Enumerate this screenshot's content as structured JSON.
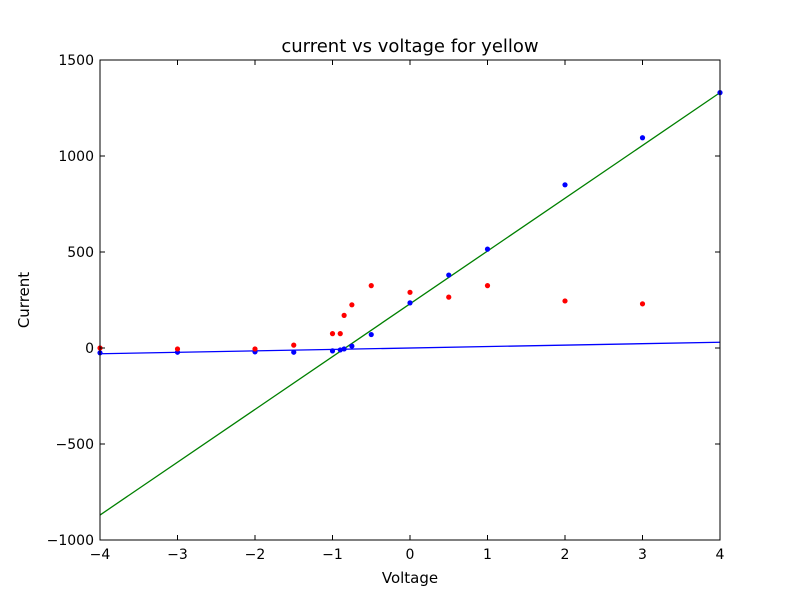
{
  "chart_data": {
    "type": "scatter",
    "title": "current vs voltage for yellow",
    "xlabel": "Voltage",
    "ylabel": "Current",
    "xlim": [
      -4,
      4
    ],
    "ylim": [
      -1000,
      1500
    ],
    "xticks": [
      -4,
      -3,
      -2,
      -1,
      0,
      1,
      2,
      3,
      4
    ],
    "xtick_labels": [
      "−4",
      "−3",
      "−2",
      "−1",
      "0",
      "1",
      "2",
      "3",
      "4"
    ],
    "yticks": [
      -1000,
      -500,
      0,
      500,
      1000,
      1500
    ],
    "ytick_labels": [
      "−1000",
      "−500",
      "0",
      "500",
      "1000",
      "1500"
    ],
    "grid": false,
    "legend": "none",
    "series": [
      {
        "kind": "points",
        "color": "#0000ff",
        "x": [
          -4,
          -3,
          -2,
          -1.5,
          -1,
          -0.9,
          -0.85,
          -0.75,
          -0.5,
          0,
          0.5,
          1,
          2,
          3,
          4
        ],
        "y": [
          -25,
          -22,
          -20,
          -22,
          -15,
          -10,
          -5,
          10,
          70,
          235,
          380,
          515,
          850,
          1095,
          1330
        ]
      },
      {
        "kind": "points",
        "color": "#ff0000",
        "x": [
          -4,
          -3,
          -2,
          -1.5,
          -1,
          -0.9,
          -0.85,
          -0.75,
          -0.5,
          0,
          0.5,
          1,
          2,
          3
        ],
        "y": [
          0,
          -5,
          -5,
          15,
          75,
          75,
          170,
          225,
          325,
          290,
          265,
          325,
          245,
          230
        ]
      },
      {
        "kind": "fit-line",
        "color": "#0000ff",
        "x": [
          -4,
          4
        ],
        "y": [
          -30,
          30
        ]
      },
      {
        "kind": "fit-line",
        "color": "#008000",
        "x": [
          -4,
          4
        ],
        "y": [
          -870,
          1330
        ]
      }
    ]
  }
}
